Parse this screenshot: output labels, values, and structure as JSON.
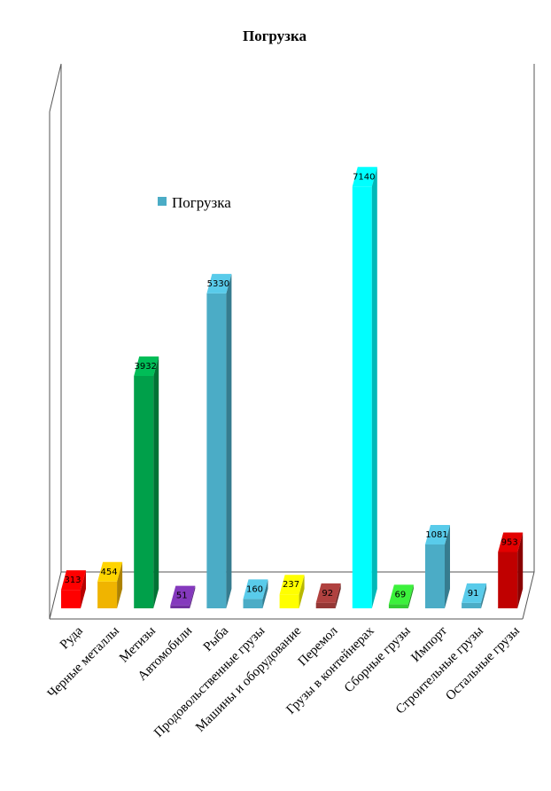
{
  "chart_data": {
    "type": "bar",
    "title": "Погрузка",
    "legend": {
      "entries": [
        "Погрузка"
      ],
      "position": "inside-top-left"
    },
    "categories": [
      "Руда",
      "Черные металлы",
      "Метизы",
      "Автомобили",
      "Рыба",
      "Продовольственные грузы",
      "Машины и оборудование",
      "Перемол",
      "Грузы в контейнерах",
      "Сборные грузы",
      "Импорт",
      "Строительные грузы",
      "Остальные  грузы"
    ],
    "series": [
      {
        "name": "Погрузка",
        "values": [
          313,
          454,
          3932,
          51,
          5330,
          160,
          237,
          92,
          7140,
          69,
          1081,
          91,
          953
        ]
      }
    ],
    "data_labels": [
      "313",
      "454",
      "3932",
      "51",
      "5330",
      "160",
      "237",
      "92",
      "7140",
      "69",
      "1081",
      "91",
      "953"
    ],
    "bar_colors": [
      "#ff0000",
      "#f0b400",
      "#00a04a",
      "#7030a0",
      "#4bacc6",
      "#4bacc6",
      "#ffff00",
      "#953735",
      "#00ffff",
      "#33cc33",
      "#4bacc6",
      "#4bacc6",
      "#c00000"
    ],
    "legend_color": "#4bacc6",
    "ylim": [
      0,
      7700
    ],
    "grid": false,
    "three_d": true
  }
}
